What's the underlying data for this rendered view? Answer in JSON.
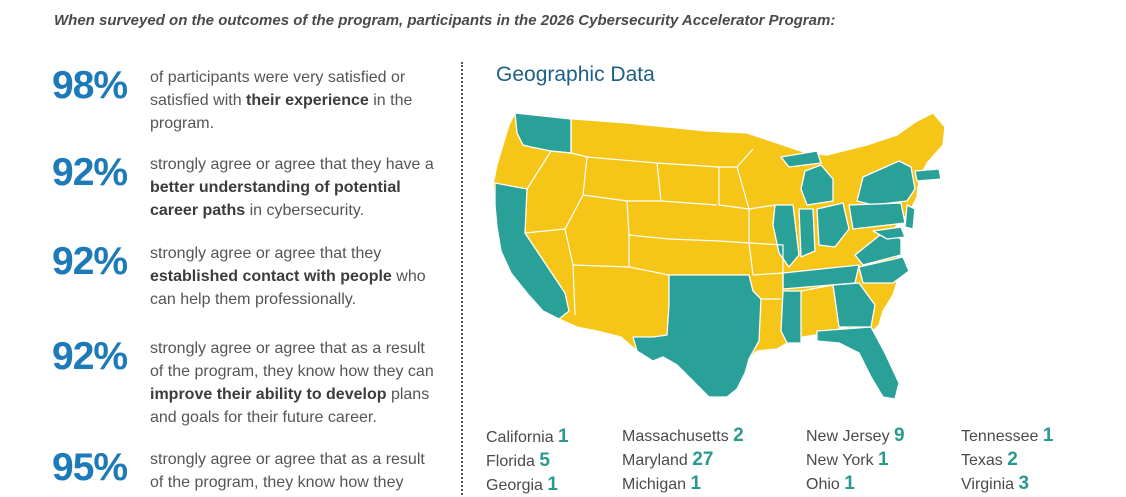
{
  "intro": "When surveyed on the outcomes of the program, participants in the 2026 Cybersecurity Accelerator Program:",
  "stats": [
    {
      "percent": "98%",
      "pre": "of participants were very satisfied or satisfied with ",
      "bold": "their experience",
      "post": " in the program."
    },
    {
      "percent": "92%",
      "pre": "strongly agree or agree that they have a ",
      "bold": "better understanding of potential career paths",
      "post": " in cybersecurity."
    },
    {
      "percent": "92%",
      "pre": "strongly agree or agree that they ",
      "bold": "established contact with people",
      "post": " who can help them professionally."
    },
    {
      "percent": "92%",
      "pre": "strongly agree or agree that as a result of the program, they know how they can ",
      "bold": "improve their ability to develop",
      "post": " plans and goals for their future career."
    },
    {
      "percent": "95%",
      "pre": "strongly agree or agree that as a result of the program, they know how they",
      "bold": "",
      "post": ""
    }
  ],
  "geo_title": "Geographic Data",
  "colors": {
    "teal": "#2aa198",
    "yellow": "#f5c518",
    "blue": "#1d7ab8"
  },
  "legend": [
    [
      {
        "state": "California",
        "count": "1"
      },
      {
        "state": "Florida",
        "count": "5"
      },
      {
        "state": "Georgia",
        "count": "1"
      }
    ],
    [
      {
        "state": "Massachusetts",
        "count": "2"
      },
      {
        "state": "Maryland",
        "count": "27"
      },
      {
        "state": "Michigan",
        "count": "1"
      }
    ],
    [
      {
        "state": "New Jersey",
        "count": "9"
      },
      {
        "state": "New York",
        "count": "1"
      },
      {
        "state": "Ohio",
        "count": "1"
      }
    ],
    [
      {
        "state": "Tennessee",
        "count": "1"
      },
      {
        "state": "Texas",
        "count": "2"
      },
      {
        "state": "Virginia",
        "count": "3"
      }
    ]
  ]
}
